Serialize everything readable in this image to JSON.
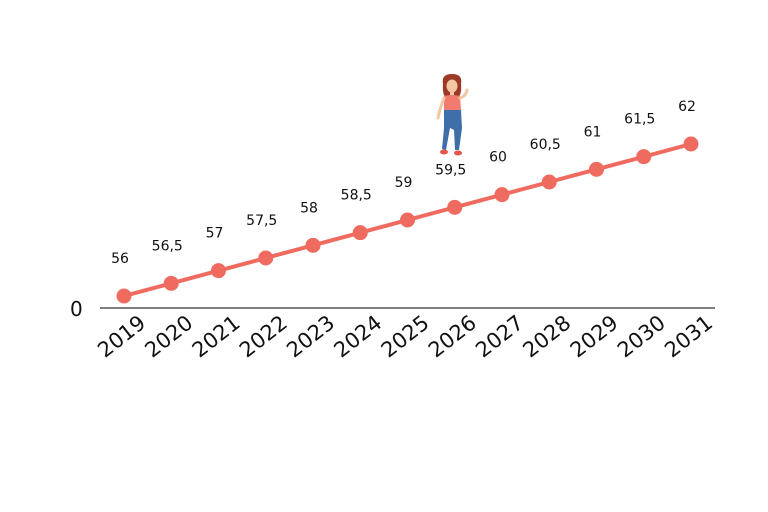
{
  "chart_data": {
    "type": "line",
    "title": "",
    "xlabel": "",
    "ylabel": "",
    "x": [
      "2019",
      "2020",
      "2021",
      "2022",
      "2023",
      "2024",
      "2025",
      "2026",
      "2027",
      "2028",
      "2029",
      "2030",
      "2031"
    ],
    "values": [
      56,
      56.5,
      57,
      57.5,
      58,
      58.5,
      59,
      59.5,
      60,
      60.5,
      61,
      61.5,
      62
    ],
    "data_labels": [
      "56",
      "56,5",
      "57",
      "57,5",
      "58",
      "58,5",
      "59",
      "59,5",
      "60",
      "60,5",
      "61",
      "61,5",
      "62"
    ],
    "y_axis_tick_label": "0",
    "grid": false,
    "legend": "none",
    "colors": {
      "line": "#f06b5f",
      "marker": "#f06b5f",
      "axis": "#555555"
    },
    "decoration_icon": "walking-woman-icon"
  }
}
